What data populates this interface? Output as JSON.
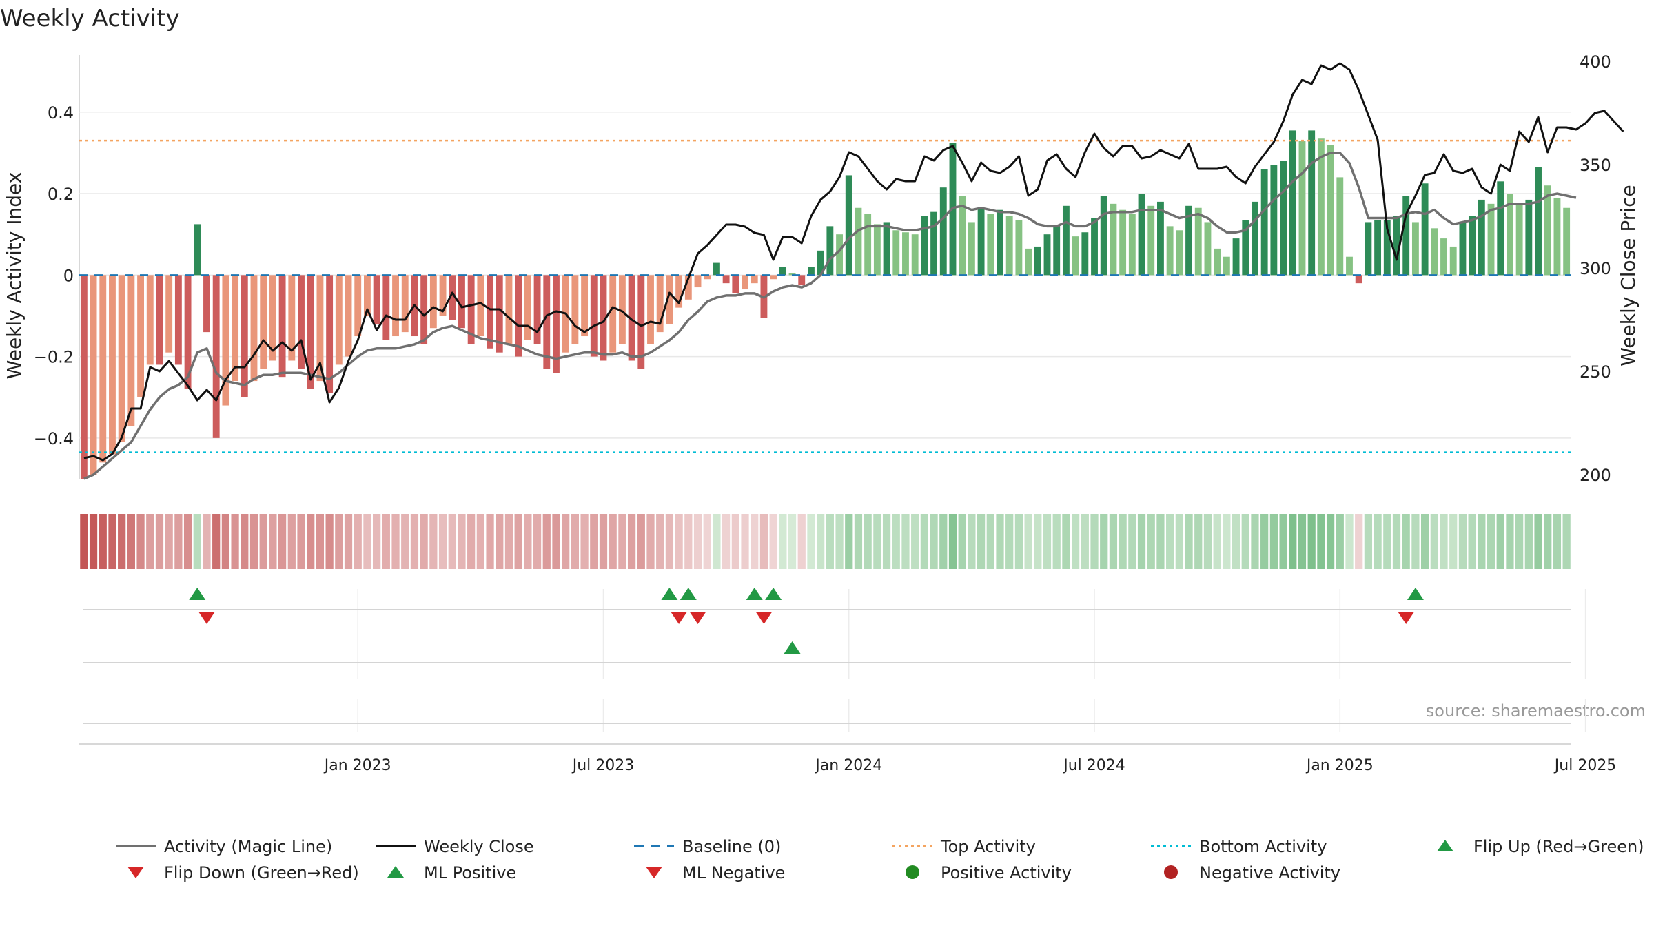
{
  "chart_data": {
    "type": "bar",
    "title": "Weekly Activity",
    "ylabel": "Weekly Activity Index",
    "ylabel_right": "Weekly Close Price",
    "ylim": [
      -0.5,
      0.54
    ],
    "ylim_right": [
      198,
      403
    ],
    "y_ticks": [
      {
        "value": 0.4,
        "label": "0.4"
      },
      {
        "value": 0.2,
        "label": "0.2"
      },
      {
        "value": 0,
        "label": "0"
      },
      {
        "value": -0.2,
        "label": "−0.2"
      },
      {
        "value": -0.4,
        "label": "−0.4"
      }
    ],
    "y_right_ticks": [
      {
        "value": 400,
        "label": "400"
      },
      {
        "value": 350,
        "label": "350"
      },
      {
        "value": 300,
        "label": "300"
      },
      {
        "value": 250,
        "label": "250"
      },
      {
        "value": 200,
        "label": "200"
      }
    ],
    "x_ticks": [
      {
        "week": 29.5,
        "label": "Jan 2023"
      },
      {
        "week": 55.5,
        "label": "Jul 2023"
      },
      {
        "week": 81.5,
        "label": "Jan 2024"
      },
      {
        "week": 107.5,
        "label": "Jul 2024"
      },
      {
        "week": 133.5,
        "label": "Jan 2025"
      },
      {
        "week": 159.5,
        "label": "Jul 2025"
      }
    ],
    "top_activity": 0.33,
    "bottom_activity": -0.435,
    "baseline": 0,
    "activity": [
      -0.5,
      -0.49,
      -0.46,
      -0.44,
      -0.41,
      -0.37,
      -0.3,
      -0.22,
      -0.22,
      -0.19,
      -0.22,
      -0.28,
      0.125,
      -0.14,
      -0.4,
      -0.32,
      -0.26,
      -0.3,
      -0.26,
      -0.23,
      -0.21,
      -0.25,
      -0.21,
      -0.23,
      -0.28,
      -0.26,
      -0.29,
      -0.22,
      -0.2,
      -0.15,
      -0.1,
      -0.12,
      -0.16,
      -0.15,
      -0.14,
      -0.15,
      -0.17,
      -0.13,
      -0.1,
      -0.11,
      -0.13,
      -0.17,
      -0.15,
      -0.18,
      -0.19,
      -0.17,
      -0.2,
      -0.16,
      -0.17,
      -0.23,
      -0.24,
      -0.19,
      -0.17,
      -0.15,
      -0.2,
      -0.21,
      -0.19,
      -0.17,
      -0.21,
      -0.23,
      -0.17,
      -0.14,
      -0.12,
      -0.08,
      -0.06,
      -0.03,
      -0.01,
      0.03,
      -0.02,
      -0.045,
      -0.035,
      -0.02,
      -0.105,
      -0.01,
      0.02,
      0.005,
      -0.025,
      0.02,
      0.06,
      0.12,
      0.1,
      0.245,
      0.165,
      0.15,
      0.125,
      0.13,
      0.11,
      0.105,
      0.1,
      0.145,
      0.155,
      0.215,
      0.325,
      0.195,
      0.13,
      0.165,
      0.15,
      0.16,
      0.145,
      0.135,
      0.065,
      0.07,
      0.1,
      0.12,
      0.17,
      0.095,
      0.105,
      0.14,
      0.195,
      0.175,
      0.16,
      0.15,
      0.2,
      0.17,
      0.18,
      0.12,
      0.11,
      0.17,
      0.165,
      0.13,
      0.065,
      0.045,
      0.09,
      0.135,
      0.18,
      0.26,
      0.27,
      0.28,
      0.355,
      0.33,
      0.355,
      0.335,
      0.32,
      0.24,
      0.045,
      -0.02,
      0.13,
      0.135,
      0.135,
      0.145,
      0.195,
      0.13,
      0.225,
      0.115,
      0.09,
      0.07,
      0.13,
      0.145,
      0.185,
      0.175,
      0.23,
      0.2,
      0.175,
      0.185,
      0.265,
      0.22,
      0.19,
      0.165
    ],
    "magic_line": [
      -0.5,
      -0.49,
      -0.47,
      -0.45,
      -0.43,
      -0.41,
      -0.37,
      -0.33,
      -0.3,
      -0.28,
      -0.27,
      -0.25,
      -0.19,
      -0.18,
      -0.24,
      -0.26,
      -0.265,
      -0.27,
      -0.255,
      -0.245,
      -0.245,
      -0.24,
      -0.24,
      -0.24,
      -0.245,
      -0.25,
      -0.255,
      -0.24,
      -0.22,
      -0.2,
      -0.185,
      -0.18,
      -0.18,
      -0.18,
      -0.175,
      -0.17,
      -0.16,
      -0.14,
      -0.13,
      -0.125,
      -0.135,
      -0.145,
      -0.155,
      -0.16,
      -0.165,
      -0.17,
      -0.175,
      -0.185,
      -0.195,
      -0.2,
      -0.205,
      -0.2,
      -0.195,
      -0.19,
      -0.19,
      -0.195,
      -0.195,
      -0.19,
      -0.2,
      -0.2,
      -0.19,
      -0.175,
      -0.16,
      -0.14,
      -0.11,
      -0.09,
      -0.065,
      -0.055,
      -0.05,
      -0.05,
      -0.045,
      -0.045,
      -0.055,
      -0.04,
      -0.03,
      -0.025,
      -0.03,
      -0.02,
      0,
      0.04,
      0.06,
      0.09,
      0.11,
      0.12,
      0.12,
      0.12,
      0.115,
      0.11,
      0.11,
      0.115,
      0.12,
      0.14,
      0.165,
      0.17,
      0.16,
      0.165,
      0.16,
      0.155,
      0.155,
      0.15,
      0.14,
      0.125,
      0.12,
      0.12,
      0.13,
      0.12,
      0.12,
      0.13,
      0.15,
      0.155,
      0.155,
      0.155,
      0.16,
      0.16,
      0.16,
      0.15,
      0.14,
      0.145,
      0.15,
      0.14,
      0.12,
      0.105,
      0.105,
      0.11,
      0.135,
      0.16,
      0.185,
      0.205,
      0.23,
      0.25,
      0.275,
      0.29,
      0.3,
      0.3,
      0.275,
      0.215,
      0.14,
      0.14,
      0.14,
      0.14,
      0.15,
      0.155,
      0.15,
      0.16,
      0.14,
      0.125,
      0.13,
      0.135,
      0.145,
      0.16,
      0.165,
      0.175,
      0.175,
      0.175,
      0.18,
      0.195,
      0.2,
      0.195,
      0.19
    ],
    "weekly_close": [
      208,
      209,
      207,
      210,
      218,
      232,
      232,
      252,
      250,
      255,
      249,
      243,
      236,
      241,
      236,
      246,
      252,
      252,
      258,
      265,
      260,
      264,
      260,
      265,
      246,
      254,
      235,
      242,
      255,
      265,
      280,
      270,
      277,
      275,
      275,
      282,
      277,
      281,
      279,
      288,
      281,
      282,
      283,
      280,
      280,
      276,
      272,
      272,
      269,
      277,
      279,
      278,
      272,
      269,
      272,
      274,
      281,
      279,
      275,
      272,
      274,
      273,
      288,
      283,
      295,
      307,
      311,
      316,
      321,
      321,
      320,
      317,
      316,
      304,
      315,
      315,
      312,
      325,
      333,
      337,
      344,
      356,
      354,
      348,
      342,
      338,
      343,
      342,
      342,
      354,
      352,
      357,
      359,
      351,
      342,
      351,
      347,
      346,
      349,
      354,
      335,
      338,
      352,
      355,
      348,
      344,
      356,
      365,
      358,
      354,
      359,
      359,
      353,
      354,
      357,
      355,
      353,
      360,
      348,
      348,
      348,
      349,
      344,
      341,
      349,
      355,
      361,
      371,
      384,
      391,
      389,
      398,
      396,
      399,
      396,
      386,
      374,
      362,
      319,
      304,
      326,
      335,
      345,
      346,
      355,
      347,
      346,
      348,
      339,
      336,
      350,
      347,
      366,
      361,
      373,
      356,
      368,
      368,
      367,
      370,
      375,
      376,
      371,
      366
    ],
    "regime_bar": [
      -0.5,
      -0.49,
      -0.46,
      -0.44,
      -0.41,
      -0.37,
      -0.3,
      -0.22,
      -0.22,
      -0.19,
      -0.22,
      -0.28,
      0.125,
      -0.14,
      -0.4,
      -0.32,
      -0.26,
      -0.3,
      -0.26,
      -0.23,
      -0.21,
      -0.25,
      -0.21,
      -0.23,
      -0.28,
      -0.26,
      -0.29,
      -0.22,
      -0.2,
      -0.15,
      -0.1,
      -0.12,
      -0.16,
      -0.15,
      -0.14,
      -0.15,
      -0.17,
      -0.13,
      -0.1,
      -0.11,
      -0.13,
      -0.17,
      -0.15,
      -0.18,
      -0.19,
      -0.17,
      -0.2,
      -0.16,
      -0.17,
      -0.23,
      -0.24,
      -0.19,
      -0.17,
      -0.15,
      -0.2,
      -0.21,
      -0.19,
      -0.17,
      -0.21,
      -0.23,
      -0.17,
      -0.14,
      -0.12,
      -0.08,
      -0.06,
      -0.03,
      -0.01,
      0.03,
      -0.02,
      -0.045,
      -0.035,
      -0.02,
      -0.105,
      -0.01,
      0.02,
      0.005,
      -0.025,
      0.02,
      0.06,
      0.12,
      0.1,
      0.245,
      0.165,
      0.15,
      0.125,
      0.13,
      0.11,
      0.105,
      0.1,
      0.145,
      0.155,
      0.215,
      0.325,
      0.195,
      0.13,
      0.165,
      0.15,
      0.16,
      0.145,
      0.135,
      0.065,
      0.07,
      0.1,
      0.12,
      0.17,
      0.095,
      0.105,
      0.14,
      0.195,
      0.175,
      0.16,
      0.15,
      0.2,
      0.17,
      0.18,
      0.12,
      0.11,
      0.17,
      0.165,
      0.13,
      0.065,
      0.045,
      0.09,
      0.135,
      0.18,
      0.26,
      0.27,
      0.28,
      0.355,
      0.33,
      0.355,
      0.335,
      0.32,
      0.24,
      0.045,
      -0.02,
      0.13,
      0.135,
      0.135,
      0.145,
      0.195,
      0.13,
      0.225,
      0.115,
      0.09,
      0.07,
      0.13,
      0.145,
      0.185,
      0.175,
      0.23,
      0.2,
      0.175,
      0.185,
      0.265,
      0.22,
      0.19,
      0.165
    ],
    "flip_up": [
      12,
      62,
      64,
      71,
      73,
      141
    ],
    "flip_down": [
      13,
      63,
      65,
      72,
      140
    ],
    "ml_positive": [
      75
    ],
    "ml_negative": [],
    "source": "source: sharemaestro.com",
    "legend": [
      {
        "label": "Activity (Magic Line)",
        "symbol": "line",
        "color": "#707070"
      },
      {
        "label": "Weekly Close",
        "symbol": "line",
        "color": "#111111"
      },
      {
        "label": "Baseline (0)",
        "symbol": "dashed",
        "color": "#1f77b4"
      },
      {
        "label": "Top Activity",
        "symbol": "dotted",
        "color": "#f4a460"
      },
      {
        "label": "Bottom Activity",
        "symbol": "dotted",
        "color": "#00bcd4"
      },
      {
        "label": "Flip Up (Red→Green)",
        "symbol": "triangle-up",
        "color": "#229944"
      },
      {
        "label": "Flip Down (Green→Red)",
        "symbol": "triangle-down",
        "color": "#d62728"
      },
      {
        "label": "ML Positive",
        "symbol": "triangle-up",
        "color": "#229944"
      },
      {
        "label": "ML Negative",
        "symbol": "triangle-down",
        "color": "#d62728"
      },
      {
        "label": "Positive Activity",
        "symbol": "circle",
        "color": "#228b22"
      },
      {
        "label": "Negative Activity",
        "symbol": "circle",
        "color": "#b22222"
      }
    ],
    "colors": {
      "pos_strong": "#2e8b57",
      "pos_light": "#86c283",
      "neg_strong": "#cd5c5c",
      "neg_light": "#e9967a",
      "grid": "#e8e8e8",
      "axis": "#cccccc"
    }
  }
}
